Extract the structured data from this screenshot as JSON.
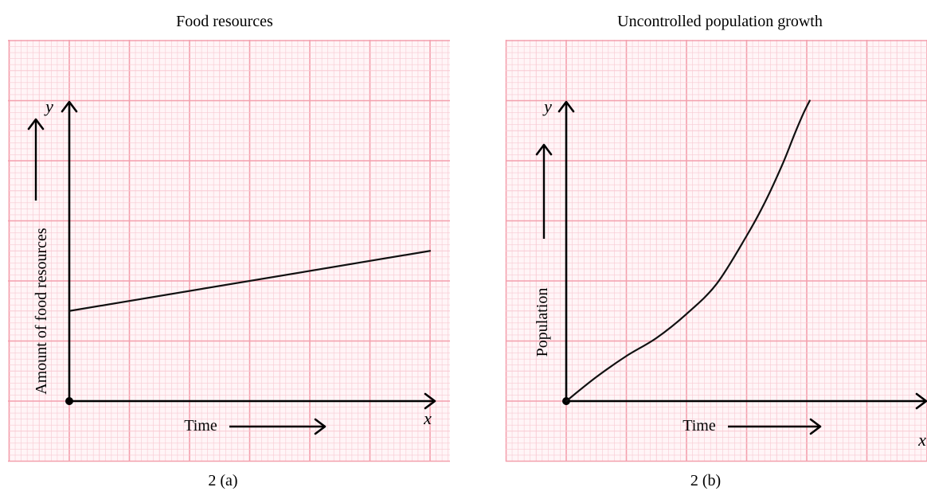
{
  "chart_data": [
    {
      "type": "line",
      "title": "Food resources",
      "caption": "2 (a)",
      "xlabel": "Time",
      "ylabel": "Amount of food resources",
      "x_axis_letter": "x",
      "y_axis_letter": "y",
      "xlim": [
        0,
        6
      ],
      "ylim": [
        0,
        5
      ],
      "grid": true,
      "series": [
        {
          "x": [
            0,
            6
          ],
          "y": [
            1.5,
            2.5
          ]
        }
      ]
    },
    {
      "type": "line",
      "title": "Uncontrolled population growth",
      "caption": "2 (b)",
      "xlabel": "Time",
      "ylabel": "Population",
      "x_axis_letter": "x",
      "y_axis_letter": "y",
      "xlim": [
        0,
        6
      ],
      "ylim": [
        0,
        5
      ],
      "grid": true,
      "series": [
        {
          "x": [
            0,
            0.5,
            1,
            1.5,
            2,
            2.5,
            3,
            3.3,
            3.6,
            3.8,
            3.95,
            4.05
          ],
          "y": [
            0,
            0.4,
            0.75,
            1.05,
            1.45,
            1.95,
            2.75,
            3.3,
            3.95,
            4.45,
            4.8,
            5
          ]
        }
      ]
    }
  ],
  "colors": {
    "grid_major": "#f3a0ad",
    "grid_minor": "#f8c9d2",
    "axis": "#000000",
    "line": "#111111"
  }
}
